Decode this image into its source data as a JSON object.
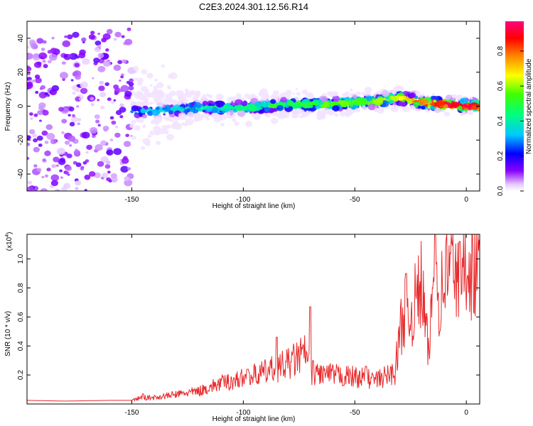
{
  "title": "C2E3.2024.301.12.56.R14",
  "chart_data": [
    {
      "type": "heatmap",
      "xlabel": "Height of straight line (km)",
      "ylabel": "Frequency (Hz)",
      "xlim": [
        -197,
        6
      ],
      "ylim": [
        -50,
        50
      ],
      "xticks": [
        -150,
        -100,
        -50,
        0
      ],
      "yticks": [
        -40,
        -20,
        0,
        20,
        40
      ],
      "colorbar": {
        "label": "Normalized spectral amplitude",
        "range": [
          0,
          0.97
        ],
        "ticks": [
          0.0,
          0.2,
          0.4,
          0.6,
          0.8
        ]
      },
      "ridge": {
        "x": [
          -197,
          -150,
          -140,
          -120,
          -100,
          -80,
          -60,
          -40,
          -30,
          -20,
          -10,
          5
        ],
        "frequency": [
          -12,
          -3,
          -3,
          -1,
          -1,
          1,
          1,
          3,
          5,
          2,
          1,
          0
        ],
        "peak_amplitude": [
          0.2,
          0.35,
          0.4,
          0.45,
          0.5,
          0.55,
          0.6,
          0.65,
          0.7,
          0.9,
          0.95,
          0.95
        ]
      },
      "grid": false
    },
    {
      "type": "line",
      "xlabel": "Height of straight line (km)",
      "ylabel": "SNR (10 * v/v)",
      "y_multiplier": "(x10",
      "y_multiplier_exp": "4",
      "y_multiplier_close": ")",
      "xlim": [
        -197,
        6
      ],
      "ylim": [
        0,
        1.17
      ],
      "xticks": [
        -150,
        -100,
        -50,
        0
      ],
      "yticks": [
        0.2,
        0.4,
        0.6,
        0.8,
        1.0
      ],
      "series": [
        {
          "color": "#e8292b",
          "x": [
            -197,
            -180,
            -160,
            -150,
            -146,
            -140,
            -130,
            -120,
            -110,
            -100,
            -90,
            -80,
            -72,
            -70,
            -60,
            -50,
            -40,
            -32,
            -30,
            -28,
            -25,
            -20,
            -17,
            -14,
            -12,
            -10,
            -5,
            -3,
            0,
            3,
            6
          ],
          "y": [
            0.02,
            0.015,
            0.02,
            0.02,
            0.04,
            0.04,
            0.06,
            0.08,
            0.13,
            0.16,
            0.2,
            0.25,
            0.32,
            0.2,
            0.18,
            0.17,
            0.15,
            0.2,
            0.42,
            0.6,
            0.55,
            0.75,
            0.3,
            0.92,
            0.6,
            0.82,
            0.9,
            0.65,
            0.95,
            0.85,
            0.88
          ],
          "peaks": [
            {
              "x": -145,
              "y": 0.07
            },
            {
              "x": -98,
              "y": 0.24
            },
            {
              "x": -85,
              "y": 0.46
            },
            {
              "x": -70,
              "y": 0.67
            },
            {
              "x": -45,
              "y": 0.26
            },
            {
              "x": -27,
              "y": 0.9
            },
            {
              "x": -14,
              "y": 1.17
            },
            {
              "x": -3,
              "y": 1.12
            },
            {
              "x": 6,
              "y": 1.13
            }
          ]
        }
      ],
      "grid": false
    }
  ]
}
